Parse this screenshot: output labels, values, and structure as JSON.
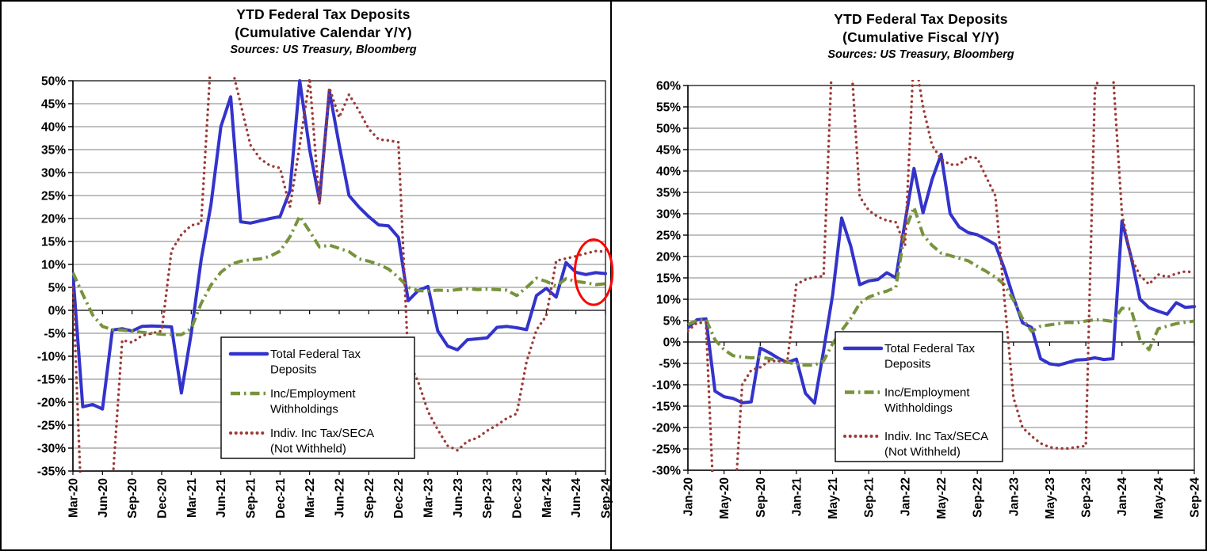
{
  "window_title": "YTD Federal Tax Deposits",
  "colors": {
    "total_deposits": "#3333CC",
    "withholdings": "#77933C",
    "indiv_seca": "#9C3A38",
    "gridline": "#808080",
    "axis": "#000000",
    "annotation": "#FF0000",
    "background": "#FFFFFF"
  },
  "chart_data": [
    {
      "type": "line",
      "title_lines": [
        "YTD Federal Tax Deposits",
        "(Cumulative Calendar Y/Y)"
      ],
      "subtitle": "Sources: US Treasury, Bloomberg",
      "ylabel": "",
      "xlabel": "",
      "ylim": [
        -35,
        50
      ],
      "y_tick_step": 5,
      "y_tick_format": "percent",
      "grid": "horizontal-only",
      "legend_position": "inside-bottom-center",
      "x_tick_interval": 3,
      "x": [
        "Mar-20",
        "Apr-20",
        "May-20",
        "Jun-20",
        "Jul-20",
        "Aug-20",
        "Sep-20",
        "Oct-20",
        "Nov-20",
        "Dec-20",
        "Jan-21",
        "Feb-21",
        "Mar-21",
        "Apr-21",
        "May-21",
        "Jun-21",
        "Jul-21",
        "Aug-21",
        "Sep-21",
        "Oct-21",
        "Nov-21",
        "Dec-21",
        "Jan-22",
        "Feb-22",
        "Mar-22",
        "Apr-22",
        "May-22",
        "Jun-22",
        "Jul-22",
        "Aug-22",
        "Sep-22",
        "Oct-22",
        "Nov-22",
        "Dec-22",
        "Jan-23",
        "Feb-23",
        "Mar-23",
        "Apr-23",
        "May-23",
        "Jun-23",
        "Jul-23",
        "Aug-23",
        "Sep-23",
        "Oct-23",
        "Nov-23",
        "Dec-23",
        "Jan-24",
        "Feb-24",
        "Mar-24",
        "Apr-24",
        "May-24",
        "Jun-24",
        "Jul-24",
        "Aug-24",
        "Sep-24"
      ],
      "x_tick_labels": [
        "Mar-20",
        "Jun-20",
        "Sep-20",
        "Dec-20",
        "Mar-21",
        "Jun-21",
        "Sep-21",
        "Dec-21",
        "Mar-22",
        "Jun-22",
        "Sep-22",
        "Dec-22",
        "Mar-23",
        "Jun-23",
        "Sep-23",
        "Dec-23",
        "Mar-24",
        "Jun-24",
        "Sep-24"
      ],
      "clip_note": "values beyond ylim are plotted but clipped at plot edges (estimates)",
      "series": [
        {
          "name": "Total Federal Tax Deposits",
          "line": "solid",
          "color_key": "total_deposits",
          "values": [
            8,
            -21,
            -20.5,
            -21.5,
            -4.3,
            -4,
            -4.5,
            -3.5,
            -3.4,
            -3.5,
            -3.6,
            -18,
            -5,
            11,
            23,
            40,
            46.5,
            19.3,
            19,
            19.5,
            20,
            20.4,
            26,
            50,
            35,
            24,
            47.8,
            36,
            25,
            22.5,
            20.4,
            18.6,
            18.4,
            15.9,
            2.1,
            4.3,
            5.2,
            -4.5,
            -7.8,
            -8.6,
            -6.4,
            -6.2,
            -6,
            -3.7,
            -3.5,
            -3.8,
            -4.2,
            3.2,
            4.8,
            2.9,
            10.4,
            8.3,
            7.8,
            8.2,
            8
          ]
        },
        {
          "name": "Inc/Employment Withholdings",
          "line": "dash-dot",
          "color_key": "withholdings",
          "values": [
            8.2,
            3.5,
            -1,
            -3.5,
            -4.2,
            -4.3,
            -4.5,
            -4.8,
            -5,
            -5.2,
            -5.3,
            -5.3,
            -4,
            1.5,
            5.5,
            8.3,
            10,
            10.7,
            11,
            11.2,
            11.8,
            12.9,
            16,
            20.5,
            17.2,
            13.8,
            14.2,
            13.5,
            12.8,
            11.2,
            10.7,
            10,
            9,
            7.2,
            5,
            4.3,
            4.2,
            4.4,
            4.3,
            4.5,
            4.7,
            4.5,
            4.6,
            4.5,
            4.4,
            3.2,
            5,
            7,
            6.3,
            5.3,
            6.9,
            6.3,
            6,
            5.6,
            5.8
          ]
        },
        {
          "name": "Indiv. Inc Tax/SECA (Not Withheld)",
          "line": "dotted",
          "color_key": "indiv_seca",
          "values": [
            5,
            -50,
            -52,
            -48,
            -38,
            -6.5,
            -7,
            -5.5,
            -5,
            -4.5,
            13,
            16.5,
            18.5,
            19,
            55,
            58,
            54,
            45,
            36,
            33,
            31.5,
            31,
            22.5,
            36,
            50.5,
            23,
            48.5,
            42,
            47,
            43.5,
            39.5,
            37.2,
            37,
            36.6,
            -11,
            -15.5,
            -22,
            -26,
            -29.5,
            -30.5,
            -28.5,
            -27.8,
            -26.2,
            -25,
            -23.5,
            -22.5,
            -11.2,
            -4.3,
            -1.2,
            10.8,
            11.3,
            11.8,
            12.4,
            12.9,
            12.8
          ]
        }
      ],
      "legend_labels": [
        [
          "Total Federal Tax",
          "Deposits"
        ],
        [
          "Inc/Employment",
          "Withholdings"
        ],
        [
          "Indiv. Inc Tax/SECA",
          "(Not Withheld)"
        ]
      ],
      "annotations": [
        {
          "type": "ellipse",
          "purpose": "highlights latest readings",
          "color_key": "annotation",
          "center_month": "Aug-24",
          "center_month_offset": -0.2,
          "center_value": 8.3,
          "rx_months": 1.9,
          "ry_value": 7.1
        }
      ]
    },
    {
      "type": "line",
      "title_lines": [
        "YTD Federal Tax Deposits",
        "(Cumulative Fiscal Y/Y)"
      ],
      "subtitle": "Sources: US Treasury, Bloomberg",
      "ylabel": "",
      "xlabel": "",
      "ylim": [
        -30,
        60
      ],
      "y_tick_step": 5,
      "y_tick_format": "percent",
      "grid": "horizontal-only",
      "legend_position": "inside-bottom-center",
      "x_tick_interval": 4,
      "x": [
        "Jan-20",
        "Feb-20",
        "Mar-20",
        "Apr-20",
        "May-20",
        "Jun-20",
        "Jul-20",
        "Aug-20",
        "Sep-20",
        "Oct-20",
        "Nov-20",
        "Dec-20",
        "Jan-21",
        "Feb-21",
        "Mar-21",
        "Apr-21",
        "May-21",
        "Jun-21",
        "Jul-21",
        "Aug-21",
        "Sep-21",
        "Oct-21",
        "Nov-21",
        "Dec-21",
        "Jan-22",
        "Feb-22",
        "Mar-22",
        "Apr-22",
        "May-22",
        "Jun-22",
        "Jul-22",
        "Aug-22",
        "Sep-22",
        "Oct-22",
        "Nov-22",
        "Dec-22",
        "Jan-23",
        "Feb-23",
        "Mar-23",
        "Apr-23",
        "May-23",
        "Jun-23",
        "Jul-23",
        "Aug-23",
        "Sep-23",
        "Oct-23",
        "Nov-23",
        "Dec-23",
        "Jan-24",
        "Feb-24",
        "Mar-24",
        "Apr-24",
        "May-24",
        "Jun-24",
        "Jul-24",
        "Aug-24",
        "Sep-24"
      ],
      "x_tick_labels": [
        "Jan-20",
        "May-20",
        "Sep-20",
        "Jan-21",
        "May-21",
        "Sep-21",
        "Jan-22",
        "May-22",
        "Sep-22",
        "Jan-23",
        "May-23",
        "Sep-23",
        "Jan-24",
        "May-24",
        "Sep-24"
      ],
      "clip_note": "values beyond ylim are plotted but clipped at plot edges (estimates)",
      "series": [
        {
          "name": "Total Federal Tax Deposits",
          "line": "solid",
          "color_key": "total_deposits",
          "values": [
            3.3,
            5.2,
            5.4,
            -11.5,
            -12.8,
            -13.2,
            -14.2,
            -14,
            -1.4,
            -2.5,
            -3.8,
            -4.8,
            -4,
            -12,
            -14.3,
            -2,
            11,
            29,
            22.5,
            13.4,
            14.3,
            14.6,
            16.2,
            15,
            28,
            40.6,
            30.2,
            38,
            43.9,
            30,
            26.9,
            25.6,
            25.1,
            24,
            22.8,
            17.1,
            10.4,
            4.5,
            3.4,
            -3.9,
            -5.1,
            -5.4,
            -4.8,
            -4.2,
            -4.1,
            -3.7,
            -4.1,
            -3.9,
            28.3,
            20,
            10,
            8,
            7.2,
            6.5,
            9.2,
            8.1,
            8.3
          ]
        },
        {
          "name": "Inc/Employment Withholdings",
          "line": "dash-dot",
          "color_key": "withholdings",
          "values": [
            4.1,
            5,
            5.3,
            0.5,
            -1.8,
            -3.2,
            -3.5,
            -3.7,
            -3.5,
            -3.9,
            -4.3,
            -4.7,
            -5.2,
            -5.4,
            -5.4,
            -4.4,
            -0.4,
            2.7,
            5.5,
            9,
            10.5,
            11.3,
            11.9,
            12.8,
            26,
            31.5,
            25.1,
            22.6,
            20.8,
            20.2,
            19.6,
            19,
            17.7,
            16.5,
            15.2,
            13.4,
            9.8,
            5.5,
            2.5,
            3.7,
            4,
            4.3,
            4.6,
            4.5,
            4.9,
            5.2,
            5.1,
            4.8,
            7.9,
            7.7,
            0.5,
            -1.8,
            3.1,
            3.7,
            4.3,
            4.6,
            4.9
          ]
        },
        {
          "name": "Indiv. Inc Tax/SECA (Not Withheld)",
          "line": "dotted",
          "color_key": "indiv_seca",
          "values": [
            2.6,
            4.5,
            4.5,
            -45,
            -48,
            -44,
            -10,
            -6.6,
            -5.9,
            -4.4,
            -4.5,
            -4.5,
            13.5,
            14.6,
            15.2,
            15.4,
            70,
            75,
            68,
            34,
            30.8,
            29.3,
            28.4,
            28,
            22.5,
            68,
            55,
            46,
            42.8,
            41.5,
            41.5,
            43.3,
            43,
            38.5,
            34.2,
            10,
            -13,
            -20,
            -22,
            -23.7,
            -24.6,
            -24.9,
            -24.9,
            -24.6,
            -24.3,
            59,
            65,
            63,
            30,
            19.8,
            15.5,
            13.5,
            15.8,
            15.2,
            16,
            16.5,
            16.3
          ]
        }
      ],
      "legend_labels": [
        [
          "Total Federal Tax",
          "Deposits"
        ],
        [
          "Inc/Employment",
          "Withholdings"
        ],
        [
          "Indiv. Inc Tax/SECA",
          "(Not Withheld)"
        ]
      ],
      "annotations": []
    }
  ]
}
